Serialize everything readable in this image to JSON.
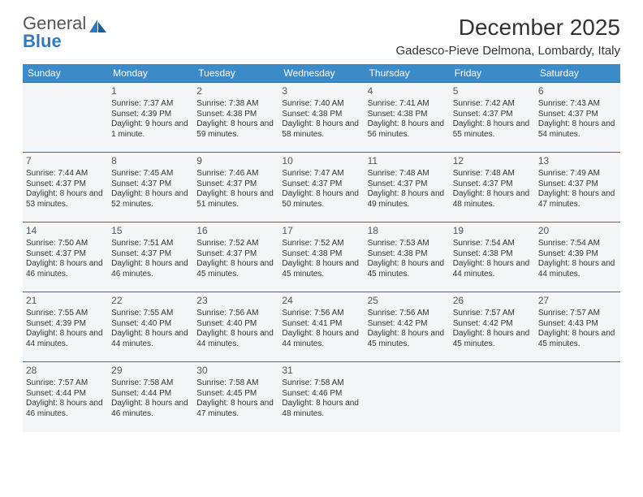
{
  "logo": {
    "text1": "General",
    "text2": "Blue"
  },
  "title": "December 2025",
  "location": "Gadesco-Pieve Delmona, Lombardy, Italy",
  "colors": {
    "header_bg": "#3b8bc9",
    "header_text": "#ffffff",
    "cell_bg": "#f4f5f6",
    "cell_border": "#2f6fa3",
    "text": "#333333",
    "logo_gray": "#555555",
    "logo_blue": "#2f7bbf"
  },
  "weekdays": [
    "Sunday",
    "Monday",
    "Tuesday",
    "Wednesday",
    "Thursday",
    "Friday",
    "Saturday"
  ],
  "weeks": [
    [
      null,
      {
        "d": "1",
        "sr": "7:37 AM",
        "ss": "4:39 PM",
        "dl": "9 hours and 1 minute."
      },
      {
        "d": "2",
        "sr": "7:38 AM",
        "ss": "4:38 PM",
        "dl": "8 hours and 59 minutes."
      },
      {
        "d": "3",
        "sr": "7:40 AM",
        "ss": "4:38 PM",
        "dl": "8 hours and 58 minutes."
      },
      {
        "d": "4",
        "sr": "7:41 AM",
        "ss": "4:38 PM",
        "dl": "8 hours and 56 minutes."
      },
      {
        "d": "5",
        "sr": "7:42 AM",
        "ss": "4:37 PM",
        "dl": "8 hours and 55 minutes."
      },
      {
        "d": "6",
        "sr": "7:43 AM",
        "ss": "4:37 PM",
        "dl": "8 hours and 54 minutes."
      }
    ],
    [
      {
        "d": "7",
        "sr": "7:44 AM",
        "ss": "4:37 PM",
        "dl": "8 hours and 53 minutes."
      },
      {
        "d": "8",
        "sr": "7:45 AM",
        "ss": "4:37 PM",
        "dl": "8 hours and 52 minutes."
      },
      {
        "d": "9",
        "sr": "7:46 AM",
        "ss": "4:37 PM",
        "dl": "8 hours and 51 minutes."
      },
      {
        "d": "10",
        "sr": "7:47 AM",
        "ss": "4:37 PM",
        "dl": "8 hours and 50 minutes."
      },
      {
        "d": "11",
        "sr": "7:48 AM",
        "ss": "4:37 PM",
        "dl": "8 hours and 49 minutes."
      },
      {
        "d": "12",
        "sr": "7:48 AM",
        "ss": "4:37 PM",
        "dl": "8 hours and 48 minutes."
      },
      {
        "d": "13",
        "sr": "7:49 AM",
        "ss": "4:37 PM",
        "dl": "8 hours and 47 minutes."
      }
    ],
    [
      {
        "d": "14",
        "sr": "7:50 AM",
        "ss": "4:37 PM",
        "dl": "8 hours and 46 minutes."
      },
      {
        "d": "15",
        "sr": "7:51 AM",
        "ss": "4:37 PM",
        "dl": "8 hours and 46 minutes."
      },
      {
        "d": "16",
        "sr": "7:52 AM",
        "ss": "4:37 PM",
        "dl": "8 hours and 45 minutes."
      },
      {
        "d": "17",
        "sr": "7:52 AM",
        "ss": "4:38 PM",
        "dl": "8 hours and 45 minutes."
      },
      {
        "d": "18",
        "sr": "7:53 AM",
        "ss": "4:38 PM",
        "dl": "8 hours and 45 minutes."
      },
      {
        "d": "19",
        "sr": "7:54 AM",
        "ss": "4:38 PM",
        "dl": "8 hours and 44 minutes."
      },
      {
        "d": "20",
        "sr": "7:54 AM",
        "ss": "4:39 PM",
        "dl": "8 hours and 44 minutes."
      }
    ],
    [
      {
        "d": "21",
        "sr": "7:55 AM",
        "ss": "4:39 PM",
        "dl": "8 hours and 44 minutes."
      },
      {
        "d": "22",
        "sr": "7:55 AM",
        "ss": "4:40 PM",
        "dl": "8 hours and 44 minutes."
      },
      {
        "d": "23",
        "sr": "7:56 AM",
        "ss": "4:40 PM",
        "dl": "8 hours and 44 minutes."
      },
      {
        "d": "24",
        "sr": "7:56 AM",
        "ss": "4:41 PM",
        "dl": "8 hours and 44 minutes."
      },
      {
        "d": "25",
        "sr": "7:56 AM",
        "ss": "4:42 PM",
        "dl": "8 hours and 45 minutes."
      },
      {
        "d": "26",
        "sr": "7:57 AM",
        "ss": "4:42 PM",
        "dl": "8 hours and 45 minutes."
      },
      {
        "d": "27",
        "sr": "7:57 AM",
        "ss": "4:43 PM",
        "dl": "8 hours and 45 minutes."
      }
    ],
    [
      {
        "d": "28",
        "sr": "7:57 AM",
        "ss": "4:44 PM",
        "dl": "8 hours and 46 minutes."
      },
      {
        "d": "29",
        "sr": "7:58 AM",
        "ss": "4:44 PM",
        "dl": "8 hours and 46 minutes."
      },
      {
        "d": "30",
        "sr": "7:58 AM",
        "ss": "4:45 PM",
        "dl": "8 hours and 47 minutes."
      },
      {
        "d": "31",
        "sr": "7:58 AM",
        "ss": "4:46 PM",
        "dl": "8 hours and 48 minutes."
      },
      null,
      null,
      null
    ]
  ],
  "labels": {
    "sunrise": "Sunrise:",
    "sunset": "Sunset:",
    "daylight": "Daylight:"
  }
}
